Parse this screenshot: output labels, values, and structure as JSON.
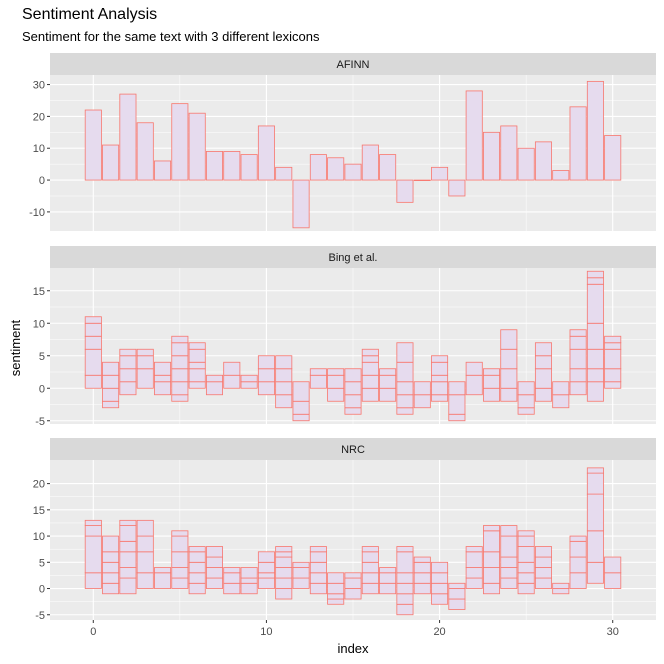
{
  "chart_data": {
    "type": "bar",
    "title": "Sentiment Analysis",
    "subtitle": "Sentiment for the same text with 3 different lexicons",
    "xlabel": "index",
    "ylabel": "sentiment",
    "x_ticks": [
      0,
      10,
      20,
      30
    ],
    "xlim": [
      -2.5,
      32.5
    ],
    "grid": true,
    "colors": {
      "fill": "#e6dbee",
      "stroke": "#f8766d",
      "panel": "#ebebeb",
      "strip": "#d9d9d9",
      "grid": "#ffffff"
    },
    "panels": [
      {
        "name": "AFINN",
        "ylim": [
          -16,
          33
        ],
        "y_ticks": [
          -10,
          0,
          10,
          20,
          30
        ],
        "values": [
          22,
          11,
          27,
          18,
          6,
          24,
          21,
          9,
          9,
          8,
          17,
          4,
          -15,
          8,
          7,
          5,
          11,
          8,
          -7,
          0,
          4,
          -5,
          28,
          15,
          17,
          10,
          12,
          3,
          23,
          31,
          14
        ],
        "segments": []
      },
      {
        "name": "Bing et al.",
        "ylim": [
          -5.5,
          18.5
        ],
        "y_ticks": [
          -5,
          0,
          5,
          10,
          15
        ],
        "values": [
          11,
          1,
          5,
          5,
          3,
          6,
          5,
          1,
          4,
          2,
          4,
          2,
          -5,
          3,
          1,
          0,
          4,
          1,
          3,
          -3,
          5,
          -4,
          2,
          1,
          6,
          -3,
          4,
          -3,
          8,
          16,
          6
        ],
        "segments": [
          [
            [
              0,
              2
            ],
            [
              2,
              6
            ],
            [
              6,
              8
            ],
            [
              8,
              10
            ],
            [
              10,
              11
            ]
          ],
          [
            [
              -3,
              -2
            ],
            [
              -2,
              0
            ],
            [
              0,
              2
            ],
            [
              2,
              4
            ]
          ],
          [
            [
              -1,
              1
            ],
            [
              1,
              3
            ],
            [
              3,
              5
            ],
            [
              5,
              6
            ]
          ],
          [
            [
              0,
              3
            ],
            [
              3,
              5
            ],
            [
              5,
              6
            ]
          ],
          [
            [
              -1,
              1
            ],
            [
              1,
              2
            ],
            [
              2,
              4
            ]
          ],
          [
            [
              -2,
              -1
            ],
            [
              -1,
              1
            ],
            [
              1,
              3
            ],
            [
              3,
              5
            ],
            [
              5,
              7
            ],
            [
              7,
              8
            ]
          ],
          [
            [
              0,
              1
            ],
            [
              1,
              3
            ],
            [
              3,
              4
            ],
            [
              4,
              6
            ],
            [
              6,
              7
            ]
          ],
          [
            [
              -1,
              1
            ],
            [
              1,
              2
            ]
          ],
          [
            [
              0,
              2
            ],
            [
              2,
              4
            ]
          ],
          [
            [
              0,
              1
            ],
            [
              1,
              2
            ]
          ],
          [
            [
              -1,
              1
            ],
            [
              1,
              3
            ],
            [
              3,
              5
            ]
          ],
          [
            [
              -3,
              -1
            ],
            [
              -1,
              1
            ],
            [
              1,
              3
            ],
            [
              3,
              5
            ]
          ],
          [
            [
              -5,
              -4
            ],
            [
              -4,
              -2
            ],
            [
              -2,
              1
            ]
          ],
          [
            [
              0,
              2
            ],
            [
              2,
              3
            ]
          ],
          [
            [
              -2,
              0
            ],
            [
              0,
              2
            ],
            [
              2,
              3
            ]
          ],
          [
            [
              -4,
              -3
            ],
            [
              -3,
              -1
            ],
            [
              -1,
              1
            ],
            [
              1,
              3
            ]
          ],
          [
            [
              -2,
              0
            ],
            [
              0,
              2
            ],
            [
              2,
              4
            ],
            [
              4,
              5
            ],
            [
              5,
              6
            ]
          ],
          [
            [
              -2,
              0
            ],
            [
              0,
              2
            ],
            [
              2,
              3
            ]
          ],
          [
            [
              -4,
              -3
            ],
            [
              -3,
              -1
            ],
            [
              -1,
              1
            ],
            [
              1,
              4
            ],
            [
              4,
              7
            ]
          ],
          [
            [
              -3,
              -1
            ],
            [
              -1,
              1
            ]
          ],
          [
            [
              -2,
              -1
            ],
            [
              -1,
              1
            ],
            [
              1,
              2
            ],
            [
              2,
              4
            ],
            [
              4,
              5
            ]
          ],
          [
            [
              -5,
              -4
            ],
            [
              -4,
              -1
            ],
            [
              -1,
              1
            ]
          ],
          [
            [
              -1,
              2
            ],
            [
              2,
              4
            ]
          ],
          [
            [
              -2,
              0
            ],
            [
              0,
              2
            ],
            [
              2,
              3
            ]
          ],
          [
            [
              -2,
              0
            ],
            [
              0,
              3
            ],
            [
              3,
              6
            ],
            [
              6,
              9
            ]
          ],
          [
            [
              -4,
              -3
            ],
            [
              -3,
              -1
            ],
            [
              -1,
              1
            ]
          ],
          [
            [
              -2,
              0
            ],
            [
              0,
              3
            ],
            [
              3,
              5
            ],
            [
              5,
              7
            ]
          ],
          [
            [
              -3,
              -1
            ],
            [
              -1,
              1
            ]
          ],
          [
            [
              -1,
              1
            ],
            [
              1,
              3
            ],
            [
              3,
              6
            ],
            [
              6,
              8
            ],
            [
              8,
              9
            ]
          ],
          [
            [
              -2,
              1
            ],
            [
              1,
              3
            ],
            [
              3,
              6
            ],
            [
              6,
              10
            ],
            [
              10,
              16
            ],
            [
              16,
              17
            ],
            [
              17,
              18
            ]
          ],
          [
            [
              0,
              1
            ],
            [
              1,
              3
            ],
            [
              3,
              6
            ],
            [
              6,
              7
            ],
            [
              7,
              8
            ]
          ]
        ]
      },
      {
        "name": "NRC",
        "ylim": [
          -6,
          24.5
        ],
        "y_ticks": [
          -5,
          0,
          5,
          10,
          15,
          20
        ],
        "values": [
          13,
          9,
          12,
          13,
          4,
          11,
          8,
          5,
          4,
          4,
          7,
          6,
          5,
          6,
          -2,
          1,
          7,
          3,
          3,
          4,
          0,
          -3,
          8,
          12,
          12,
          11,
          8,
          0,
          10,
          23,
          6
        ],
        "segments": [
          [
            [
              0,
              3
            ],
            [
              3,
              10
            ],
            [
              10,
              12
            ],
            [
              12,
              13
            ]
          ],
          [
            [
              -1,
              1
            ],
            [
              1,
              3
            ],
            [
              3,
              5
            ],
            [
              5,
              7
            ],
            [
              7,
              10
            ]
          ],
          [
            [
              -1,
              2
            ],
            [
              2,
              4
            ],
            [
              4,
              7
            ],
            [
              7,
              9
            ],
            [
              9,
              12
            ],
            [
              12,
              13
            ]
          ],
          [
            [
              0,
              3
            ],
            [
              3,
              7
            ],
            [
              7,
              10
            ],
            [
              10,
              13
            ]
          ],
          [
            [
              0,
              3
            ],
            [
              3,
              4
            ]
          ],
          [
            [
              0,
              2
            ],
            [
              2,
              4
            ],
            [
              4,
              7
            ],
            [
              7,
              10
            ],
            [
              10,
              11
            ]
          ],
          [
            [
              -1,
              1
            ],
            [
              1,
              3
            ],
            [
              3,
              5
            ],
            [
              5,
              7
            ],
            [
              7,
              8
            ]
          ],
          [
            [
              0,
              2
            ],
            [
              2,
              4
            ],
            [
              4,
              6
            ],
            [
              6,
              8
            ]
          ],
          [
            [
              -1,
              1
            ],
            [
              1,
              3
            ],
            [
              3,
              4
            ]
          ],
          [
            [
              -1,
              1
            ],
            [
              1,
              2
            ],
            [
              2,
              4
            ]
          ],
          [
            [
              0,
              2
            ],
            [
              2,
              3
            ],
            [
              3,
              5
            ],
            [
              5,
              7
            ]
          ],
          [
            [
              -2,
              0
            ],
            [
              0,
              2
            ],
            [
              2,
              4
            ],
            [
              4,
              6
            ],
            [
              6,
              7
            ],
            [
              7,
              8
            ]
          ],
          [
            [
              0,
              2
            ],
            [
              2,
              4
            ],
            [
              4,
              5
            ]
          ],
          [
            [
              -1,
              1
            ],
            [
              1,
              3
            ],
            [
              3,
              5
            ],
            [
              5,
              7
            ],
            [
              7,
              8
            ]
          ],
          [
            [
              -3,
              -2
            ],
            [
              -2,
              -1
            ],
            [
              -1,
              1
            ],
            [
              1,
              3
            ]
          ],
          [
            [
              -2,
              0
            ],
            [
              0,
              2
            ],
            [
              2,
              3
            ]
          ],
          [
            [
              -1,
              1
            ],
            [
              1,
              3
            ],
            [
              3,
              5
            ],
            [
              5,
              7
            ],
            [
              7,
              8
            ]
          ],
          [
            [
              -1,
              1
            ],
            [
              1,
              3
            ],
            [
              3,
              4
            ]
          ],
          [
            [
              -5,
              -3
            ],
            [
              -3,
              -1
            ],
            [
              -1,
              1
            ],
            [
              1,
              3
            ],
            [
              3,
              7
            ],
            [
              7,
              8
            ]
          ],
          [
            [
              -1,
              1
            ],
            [
              1,
              3
            ],
            [
              3,
              5
            ],
            [
              5,
              6
            ]
          ],
          [
            [
              -3,
              -1
            ],
            [
              -1,
              1
            ],
            [
              1,
              3
            ],
            [
              3,
              5
            ]
          ],
          [
            [
              -4,
              -2
            ],
            [
              -2,
              0
            ],
            [
              0,
              1
            ]
          ],
          [
            [
              0,
              2
            ],
            [
              2,
              4
            ],
            [
              4,
              7
            ],
            [
              7,
              8
            ]
          ],
          [
            [
              -1,
              1
            ],
            [
              1,
              4
            ],
            [
              4,
              7
            ],
            [
              7,
              11
            ],
            [
              11,
              12
            ]
          ],
          [
            [
              0,
              2
            ],
            [
              2,
              4
            ],
            [
              4,
              6
            ],
            [
              6,
              10
            ],
            [
              10,
              12
            ]
          ],
          [
            [
              -1,
              1
            ],
            [
              1,
              3
            ],
            [
              3,
              5
            ],
            [
              5,
              8
            ],
            [
              8,
              10
            ],
            [
              10,
              11
            ]
          ],
          [
            [
              0,
              2
            ],
            [
              2,
              4
            ],
            [
              4,
              6
            ],
            [
              6,
              8
            ]
          ],
          [
            [
              -1,
              0
            ],
            [
              0,
              1
            ]
          ],
          [
            [
              0,
              3
            ],
            [
              3,
              6
            ],
            [
              6,
              9
            ],
            [
              9,
              10
            ]
          ],
          [
            [
              1,
              5
            ],
            [
              5,
              11
            ],
            [
              11,
              18
            ],
            [
              18,
              22
            ],
            [
              22,
              23
            ]
          ],
          [
            [
              0,
              3
            ],
            [
              3,
              6
            ]
          ]
        ]
      }
    ]
  }
}
